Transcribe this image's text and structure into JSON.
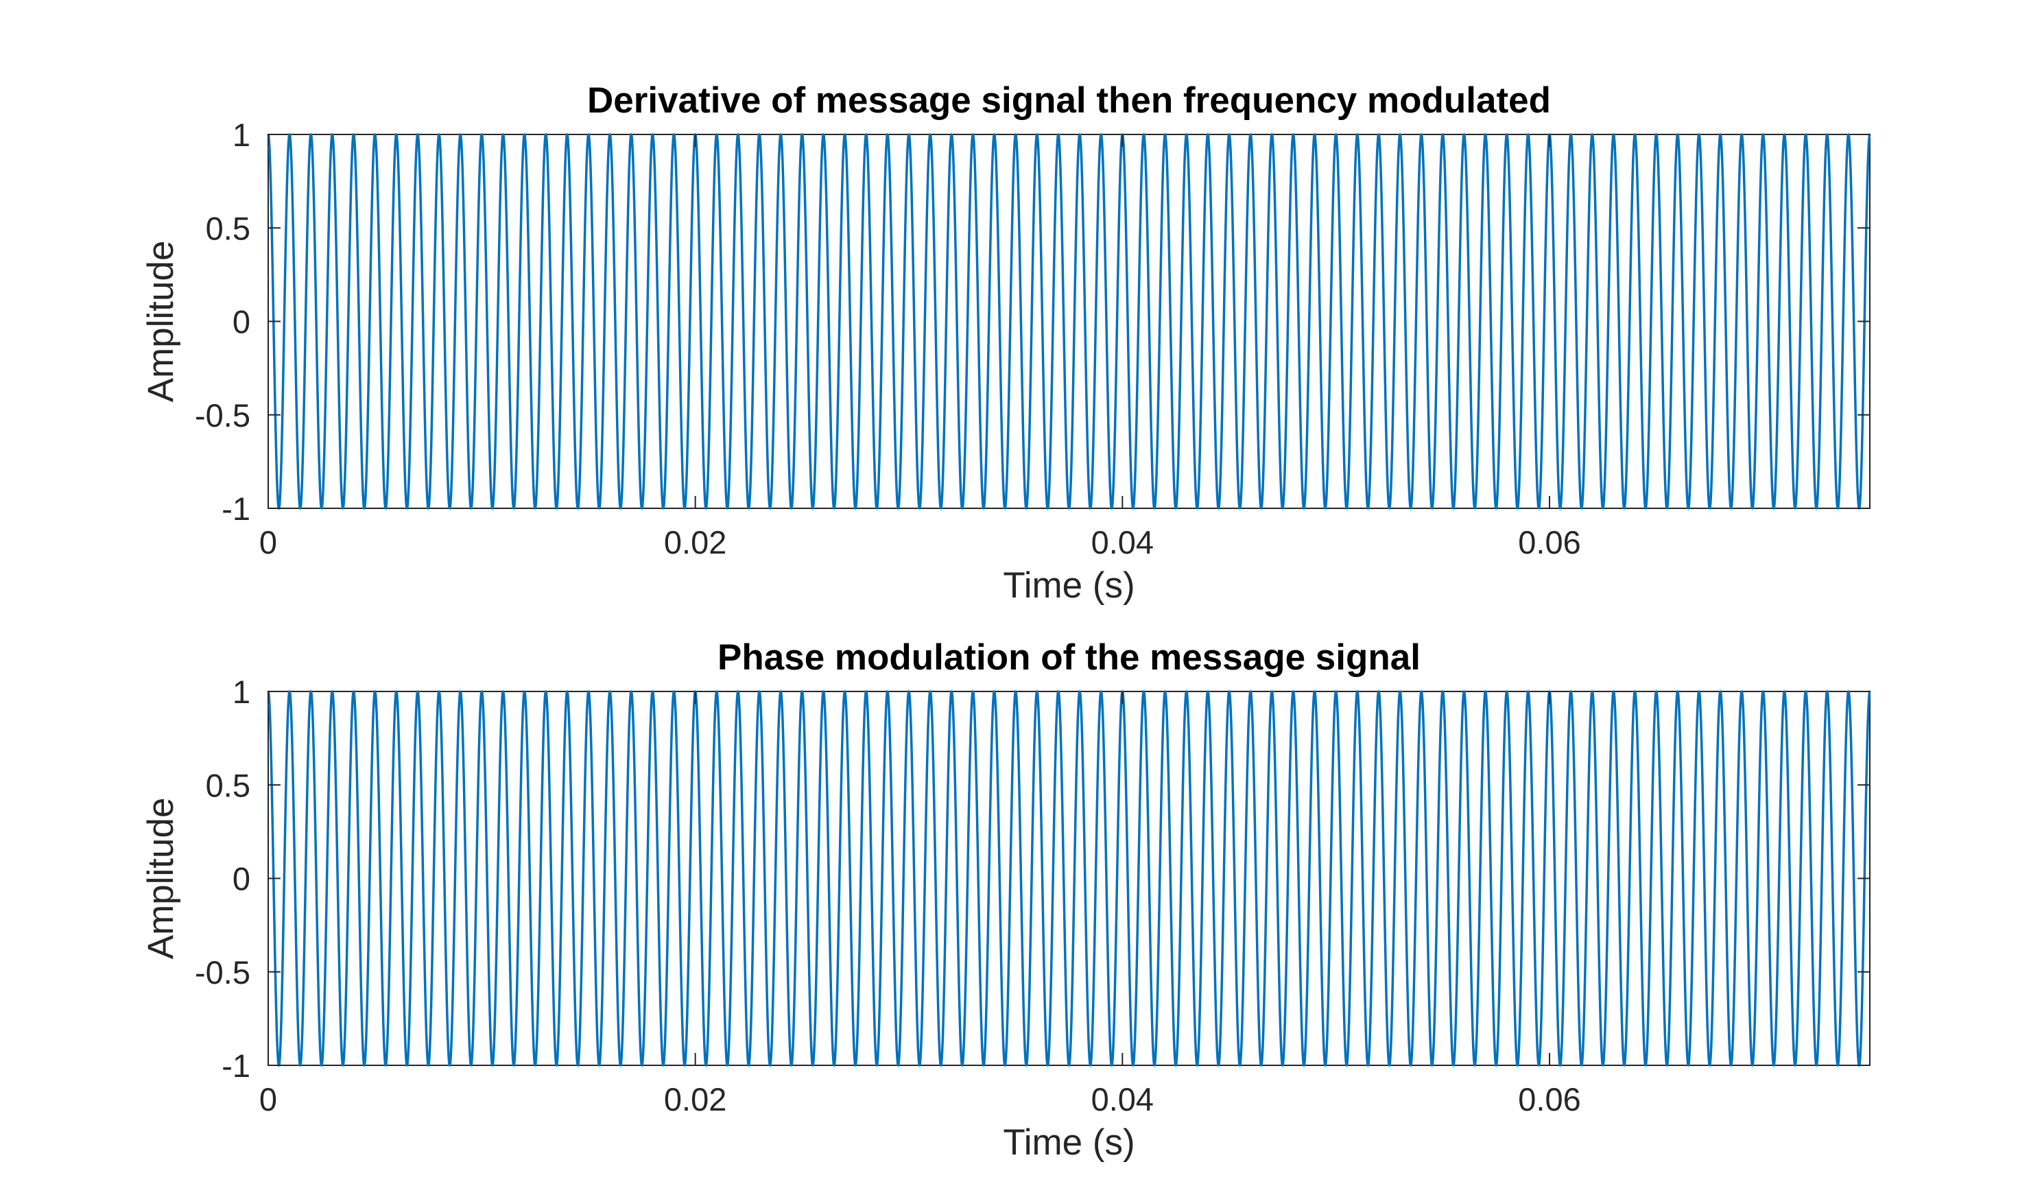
{
  "chart_data": [
    {
      "type": "line",
      "title": "Derivative of message signal then frequency modulated",
      "xlabel": "Time (s)",
      "ylabel": "Amplitude",
      "xlim": [
        0,
        0.075
      ],
      "ylim": [
        -1,
        1
      ],
      "xticks": [
        0,
        0.02,
        0.04,
        0.06
      ],
      "xtick_labels": [
        "0",
        "0.02",
        "0.04",
        "0.06"
      ],
      "yticks": [
        -1,
        -0.5,
        0,
        0.5,
        1
      ],
      "ytick_labels": [
        "-1",
        "-0.5",
        "0",
        "0.5",
        "1"
      ],
      "grid": false,
      "series": [
        {
          "function": "cos",
          "amplitude": 1,
          "frequency_hz": 1000,
          "x_start": 0,
          "x_end": 0.075,
          "color": "#0072BD"
        }
      ]
    },
    {
      "type": "line",
      "title": "Phase modulation of the message signal",
      "xlabel": "Time (s)",
      "ylabel": "Amplitude",
      "xlim": [
        0,
        0.075
      ],
      "ylim": [
        -1,
        1
      ],
      "xticks": [
        0,
        0.02,
        0.04,
        0.06
      ],
      "xtick_labels": [
        "0",
        "0.02",
        "0.04",
        "0.06"
      ],
      "yticks": [
        -1,
        -0.5,
        0,
        0.5,
        1
      ],
      "ytick_labels": [
        "-1",
        "-0.5",
        "0",
        "0.5",
        "1"
      ],
      "grid": false,
      "series": [
        {
          "function": "cos",
          "amplitude": 1,
          "frequency_hz": 1000,
          "x_start": 0,
          "x_end": 0.075,
          "color": "#0072BD"
        }
      ]
    }
  ]
}
